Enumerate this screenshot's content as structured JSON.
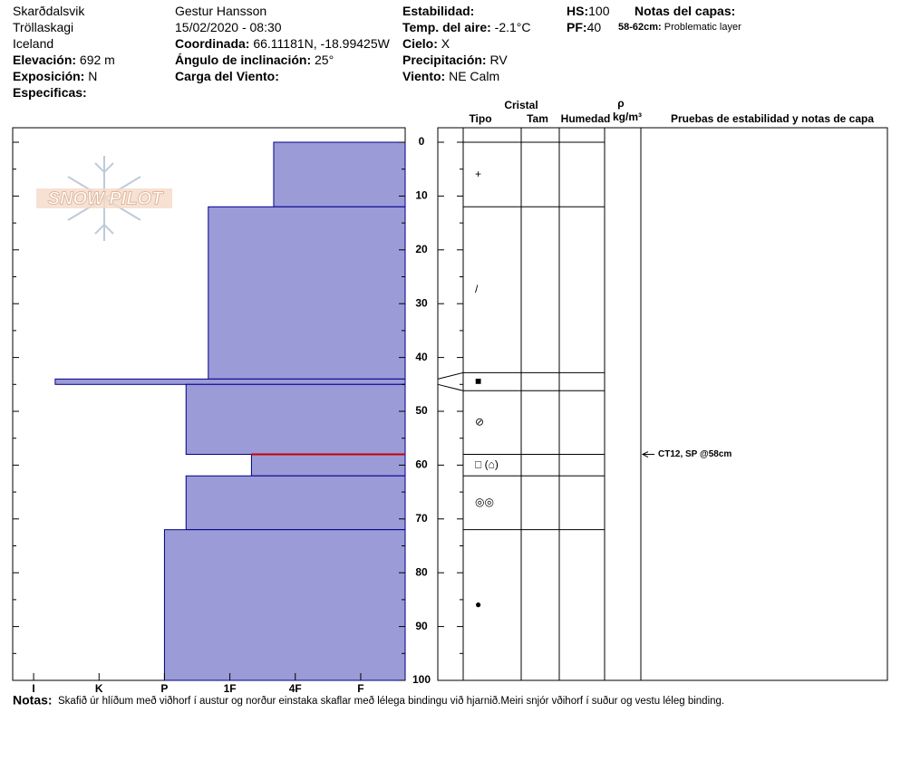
{
  "header": {
    "location": "Skarðdalsvik",
    "range": "Tröllaskagi",
    "country": "Iceland",
    "elevation": {
      "label": "Elevación:",
      "value": "692 m"
    },
    "aspect": {
      "label": "Exposición:",
      "value": "N"
    },
    "specifics": {
      "label": "Especificas:"
    },
    "observer": "Gestur Hansson",
    "datetime": "15/02/2020 - 08:30",
    "coordinates": {
      "label": "Coordinada:",
      "value": "66.11181N, -18.99425W"
    },
    "slope": {
      "label": "Ángulo de inclinación:",
      "value": "25°"
    },
    "wind_load": {
      "label": "Carga del Viento:"
    },
    "stability": {
      "label": "Estabilidad:"
    },
    "air_temp": {
      "label": "Temp. del aire:",
      "value": "-2.1°C"
    },
    "sky": {
      "label": "Cielo:",
      "value": "X"
    },
    "precip": {
      "label": "Precipitación:",
      "value": "RV"
    },
    "wind": {
      "label": "Viento:",
      "value": "NE Calm"
    },
    "hs": {
      "label": "HS:",
      "value": 100
    },
    "pf": {
      "label": "PF:",
      "value": 40
    },
    "layer_notes": {
      "title": "Notas del capas:",
      "range": "58-62cm:",
      "text": "Problematic layer"
    }
  },
  "chart_data": {
    "type": "snow-profile",
    "logo": "SNOW PILOT",
    "ylim": [
      0,
      100
    ],
    "yticks": [
      0,
      10,
      20,
      30,
      40,
      50,
      60,
      70,
      80,
      90,
      100
    ],
    "yminor": [
      5,
      15,
      25,
      35,
      45,
      55,
      65,
      75,
      85,
      95
    ],
    "xlim": [
      6.32,
      0.32
    ],
    "xticks": [
      {
        "value": 6,
        "label": "I"
      },
      {
        "value": 5,
        "label": "K"
      },
      {
        "value": 4,
        "label": "P"
      },
      {
        "value": 3,
        "label": "1F"
      },
      {
        "value": 2,
        "label": "4F"
      },
      {
        "value": 1,
        "label": "F"
      }
    ],
    "color": "#9b9bd7",
    "edge_color": "#00008b",
    "layers": {
      "top": [
        0,
        12,
        44,
        45,
        58,
        62,
        72
      ],
      "bottom": [
        12,
        44,
        45,
        58,
        62,
        72,
        100
      ],
      "hardness": [
        2.33,
        3.33,
        5.67,
        3.67,
        2.67,
        3.67,
        4
      ],
      "grain": [
        "+",
        "/",
        "■",
        "⊘",
        "□ (⌂)",
        "◎◎",
        "●"
      ]
    },
    "problem_layer": {
      "depth": 58,
      "color": "#cc0000"
    },
    "tests": [
      {
        "depth": 58,
        "label": "CT12, SP @58cm"
      }
    ],
    "columns": {
      "crystal": "Cristal",
      "type": "Tipo",
      "size": "Tam",
      "moisture": "Humedad",
      "density": "ρ",
      "density_unit": "kg/m³",
      "notes": "Pruebas de estabilidad y notas de capa"
    }
  },
  "notes": {
    "label": "Notas:",
    "text": "Skafið úr hlíðum með viðhorf í austur og norður einstaka skaflar með lélega bindingu við hjarnið.Meiri snjór vðihorf í suður og vestu léleg binding."
  }
}
